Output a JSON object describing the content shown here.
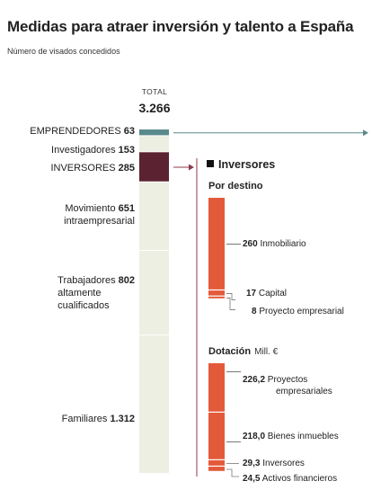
{
  "header": {
    "title": "Medidas para atraer inversión y talento a España",
    "subtitle": "Número de visados concedidos"
  },
  "total": {
    "label": "TOTAL",
    "value": "3.266"
  },
  "colors": {
    "background": "#ffffff",
    "bar_fill": "#ecefe1",
    "emprendedores": "#5a8a8c",
    "inversores": "#5b2232",
    "detail_bar": "#e35a3a",
    "connector": "#8c3a48",
    "guide_line": "#5a8a8c"
  },
  "inversores_panel": {
    "title": "Inversores",
    "destino_title": "Por destino",
    "dotacion_title": "Dotación",
    "dotacion_unit": "Mill. €"
  },
  "chart_data": [
    {
      "type": "bar",
      "stacked": true,
      "total": 3266,
      "categories": [
        "EMPRENDEDORES",
        "Investigadores",
        "INVERSORES",
        "Movimiento intraempresarial",
        "Trabajadores altamente cualificados",
        "Familiares"
      ],
      "values": [
        63,
        153,
        285,
        651,
        802,
        1312
      ],
      "value_labels": [
        "63",
        "153",
        "285",
        "651",
        "802",
        "1.312"
      ],
      "highlight": [
        "EMPRENDEDORES",
        "INVERSORES"
      ]
    },
    {
      "type": "bar",
      "stacked": true,
      "title": "Por destino",
      "categories": [
        "Inmobiliario",
        "Capital",
        "Proyecto empresarial"
      ],
      "values": [
        260,
        17,
        8
      ],
      "value_labels": [
        "260",
        "17",
        "8"
      ]
    },
    {
      "type": "bar",
      "stacked": true,
      "title": "Dotación",
      "unit": "Mill. €",
      "categories": [
        "Proyectos empresariales",
        "Bienes inmuebles",
        "Inversores",
        "Activos financieros"
      ],
      "values": [
        226.2,
        218.0,
        29.3,
        24.5
      ],
      "value_labels": [
        "226,2",
        "218,0",
        "29,3",
        "24,5"
      ]
    }
  ]
}
